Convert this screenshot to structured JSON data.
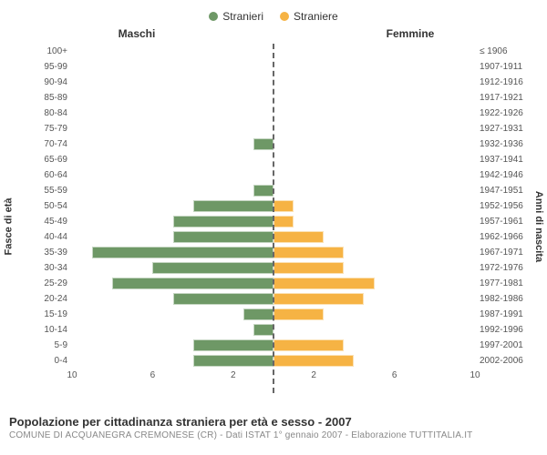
{
  "chart": {
    "type": "population-pyramid",
    "legend": [
      {
        "label": "Stranieri",
        "color": "#6e9866"
      },
      {
        "label": "Straniere",
        "color": "#f6b344"
      }
    ],
    "subheads": {
      "left": "Maschi",
      "right": "Femmine"
    },
    "yaxis_left_label": "Fasce di età",
    "yaxis_right_label": "Anni di nascita",
    "bar_colors": {
      "male": "#6e9866",
      "female": "#f6b344"
    },
    "background_color": "#ffffff",
    "centerline_color": "#666666",
    "grid_color": "#ffffff",
    "x_range": 10,
    "x_ticks_left": [
      10,
      6,
      2
    ],
    "x_ticks_right": [
      2,
      6,
      10
    ],
    "rows": [
      {
        "age": "100+",
        "year": "≤ 1906",
        "m": 0,
        "f": 0
      },
      {
        "age": "95-99",
        "year": "1907-1911",
        "m": 0,
        "f": 0
      },
      {
        "age": "90-94",
        "year": "1912-1916",
        "m": 0,
        "f": 0
      },
      {
        "age": "85-89",
        "year": "1917-1921",
        "m": 0,
        "f": 0
      },
      {
        "age": "80-84",
        "year": "1922-1926",
        "m": 0,
        "f": 0
      },
      {
        "age": "75-79",
        "year": "1927-1931",
        "m": 0,
        "f": 0
      },
      {
        "age": "70-74",
        "year": "1932-1936",
        "m": 1,
        "f": 0
      },
      {
        "age": "65-69",
        "year": "1937-1941",
        "m": 0,
        "f": 0
      },
      {
        "age": "60-64",
        "year": "1942-1946",
        "m": 0,
        "f": 0
      },
      {
        "age": "55-59",
        "year": "1947-1951",
        "m": 1,
        "f": 0
      },
      {
        "age": "50-54",
        "year": "1952-1956",
        "m": 4,
        "f": 1
      },
      {
        "age": "45-49",
        "year": "1957-1961",
        "m": 5,
        "f": 1
      },
      {
        "age": "40-44",
        "year": "1962-1966",
        "m": 5,
        "f": 2.5
      },
      {
        "age": "35-39",
        "year": "1967-1971",
        "m": 9,
        "f": 3.5
      },
      {
        "age": "30-34",
        "year": "1972-1976",
        "m": 6,
        "f": 3.5
      },
      {
        "age": "25-29",
        "year": "1977-1981",
        "m": 8,
        "f": 5
      },
      {
        "age": "20-24",
        "year": "1982-1986",
        "m": 5,
        "f": 4.5
      },
      {
        "age": "15-19",
        "year": "1987-1991",
        "m": 1.5,
        "f": 2.5
      },
      {
        "age": "10-14",
        "year": "1992-1996",
        "m": 1,
        "f": 0
      },
      {
        "age": "5-9",
        "year": "1997-2001",
        "m": 4,
        "f": 3.5
      },
      {
        "age": "0-4",
        "year": "2002-2006",
        "m": 4,
        "f": 4
      }
    ]
  },
  "footer": {
    "title": "Popolazione per cittadinanza straniera per età e sesso - 2007",
    "subtitle": "COMUNE DI ACQUANEGRA CREMONESE (CR) - Dati ISTAT 1° gennaio 2007 - Elaborazione TUTTITALIA.IT"
  }
}
